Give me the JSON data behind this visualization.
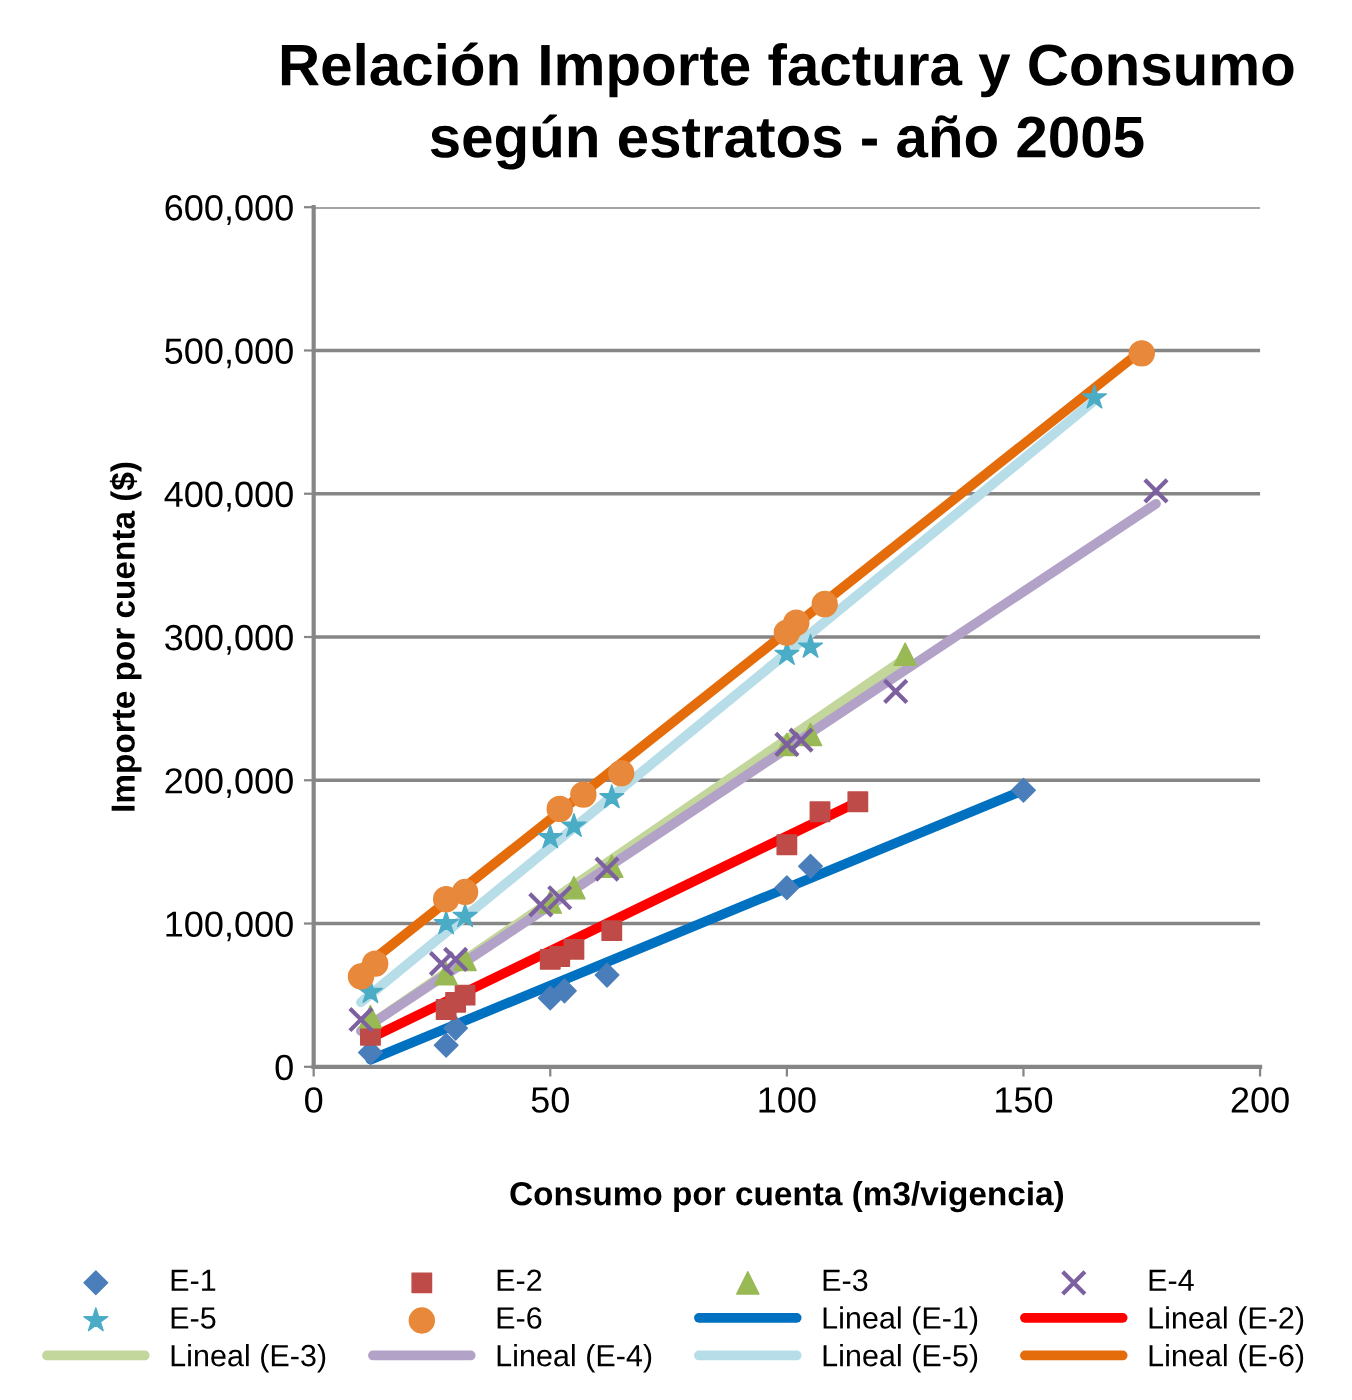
{
  "chart_data": {
    "type": "scatter",
    "title": "Relación Importe factura y Consumo\nsegún estratos - año 2005",
    "xlabel": "Consumo por cuenta (m3/vigencia)",
    "ylabel": "Importe por cuenta ($)",
    "xlim": [
      0,
      200
    ],
    "xticks": [
      0,
      50,
      100,
      150,
      200
    ],
    "ylim": [
      0,
      600000
    ],
    "yticks": [
      {
        "value": 0,
        "label": "0"
      },
      {
        "value": 100000,
        "label": "100,000"
      },
      {
        "value": 200000,
        "label": "200,000"
      },
      {
        "value": 300000,
        "label": "300,000"
      },
      {
        "value": 400000,
        "label": "400,000"
      },
      {
        "value": 500000,
        "label": "500,000"
      },
      {
        "value": 600000,
        "label": "600,000"
      }
    ],
    "grid": "y",
    "legend": "bottom",
    "series": [
      {
        "name": "E-1",
        "marker": "diamond",
        "color": "#4a7ebb",
        "x": [
          12,
          28,
          30,
          50,
          53,
          62,
          100,
          105,
          150
        ],
        "values": [
          10000,
          15000,
          27000,
          48000,
          53000,
          64000,
          125000,
          140000,
          193000
        ]
      },
      {
        "name": "E-2",
        "marker": "square",
        "color": "#be4b48",
        "x": [
          12,
          28,
          30,
          32,
          50,
          52,
          55,
          63,
          100,
          107,
          115
        ],
        "values": [
          22000,
          40000,
          45000,
          50000,
          75000,
          77000,
          82000,
          95000,
          155000,
          178000,
          185000
        ]
      },
      {
        "name": "E-3",
        "marker": "triangle",
        "color": "#98b954",
        "x": [
          12,
          28,
          32,
          50,
          55,
          63,
          100,
          105,
          125
        ],
        "values": [
          35000,
          65000,
          75000,
          115000,
          125000,
          140000,
          225000,
          232000,
          288000
        ]
      },
      {
        "name": "E-4",
        "marker": "cross",
        "color": "#7d60a0",
        "x": [
          10,
          27,
          30,
          48,
          52,
          62,
          100,
          103,
          123,
          178
        ],
        "values": [
          33000,
          72000,
          75000,
          113000,
          118000,
          138000,
          225000,
          228000,
          262000,
          402000
        ]
      },
      {
        "name": "E-5",
        "marker": "star",
        "color": "#4bacc6",
        "x": [
          12,
          28,
          32,
          50,
          55,
          63,
          100,
          105,
          165
        ],
        "values": [
          52000,
          100000,
          105000,
          160000,
          168000,
          188000,
          288000,
          293000,
          467000
        ]
      },
      {
        "name": "E-6",
        "marker": "circle",
        "color": "#e8883a",
        "x": [
          10,
          13,
          28,
          32,
          52,
          57,
          65,
          100,
          102,
          108,
          175
        ],
        "values": [
          63000,
          72000,
          117000,
          122000,
          180000,
          190000,
          205000,
          303000,
          310000,
          323000,
          498000
        ]
      },
      {
        "name": "Lineal (E-1)",
        "type": "line",
        "color": "#0070c0",
        "x": [
          12,
          150
        ],
        "values": [
          5000,
          193000
        ]
      },
      {
        "name": "Lineal (E-2)",
        "type": "line",
        "color": "#ff0000",
        "x": [
          12,
          115
        ],
        "values": [
          20000,
          185000
        ]
      },
      {
        "name": "Lineal (E-3)",
        "type": "line",
        "color": "#c3d69b",
        "x": [
          10,
          125
        ],
        "values": [
          25000,
          285000
        ]
      },
      {
        "name": "Lineal (E-4)",
        "type": "line",
        "color": "#b3a2c7",
        "x": [
          10,
          178
        ],
        "values": [
          25000,
          393000
        ]
      },
      {
        "name": "Lineal (E-5)",
        "type": "line",
        "color": "#b7dee8",
        "x": [
          10,
          165
        ],
        "values": [
          45000,
          465000
        ]
      },
      {
        "name": "Lineal (E-6)",
        "type": "line",
        "color": "#e46c0a",
        "x": [
          10,
          175
        ],
        "values": [
          68000,
          500000
        ]
      }
    ]
  }
}
